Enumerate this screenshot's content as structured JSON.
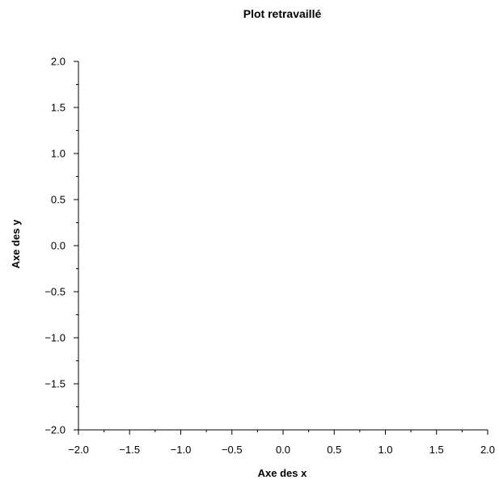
{
  "chart_data": {
    "type": "line",
    "title": "Plot retravaillé",
    "xlabel": "Axe des x",
    "ylabel": "Axe des y",
    "xlim": [
      -2.0,
      2.0
    ],
    "ylim": [
      -2.0,
      2.0
    ],
    "x_ticks": [
      "−2.0",
      "−1.5",
      "−1.0",
      "−0.5",
      "0.0",
      "0.5",
      "1.0",
      "1.5",
      "2.0"
    ],
    "y_ticks": [
      "−2.0",
      "−1.5",
      "−1.0",
      "−0.5",
      "0.0",
      "0.5",
      "1.0",
      "1.5",
      "2.0"
    ],
    "series": [],
    "grid": false,
    "legend": "none",
    "colors": {
      "axis": "#000000",
      "text": "#000000",
      "background": "#ffffff"
    }
  }
}
